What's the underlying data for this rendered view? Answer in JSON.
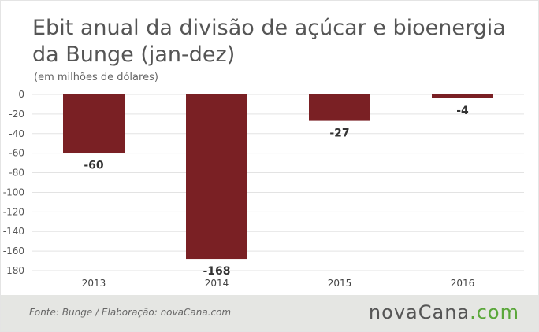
{
  "title": "Ebit anual da divisão de açúcar e bioenergia da Bunge (jan-dez)",
  "subtitle": "(em milhões de dólares)",
  "footer": {
    "source": "Fonte:  Bunge  / Elaboração:  novaCana.com",
    "brand_main": "novaCana",
    "brand_suffix": ".com"
  },
  "colors": {
    "bar": "#7a2024",
    "brand_accent": "#5aa73a"
  },
  "chart_data": {
    "type": "bar",
    "title": "Ebit anual da divisão de açúcar e bioenergia da Bunge (jan-dez)",
    "ylabel": "",
    "xlabel": "",
    "categories": [
      "2013",
      "2014",
      "2015",
      "2016"
    ],
    "values": [
      -60,
      -168,
      -27,
      -4
    ],
    "data_labels": [
      "-60",
      "-168",
      "-27",
      "-4"
    ],
    "ylim": [
      -180,
      0
    ],
    "yticks": [
      0,
      -20,
      -40,
      -60,
      -80,
      -100,
      -120,
      -140,
      -160,
      -180
    ],
    "ytick_labels": [
      "0",
      "-20",
      "-40",
      "-60",
      "-80",
      "-100",
      "-120",
      "-140",
      "-160",
      "-180"
    ],
    "grid": true,
    "legend": "none"
  }
}
